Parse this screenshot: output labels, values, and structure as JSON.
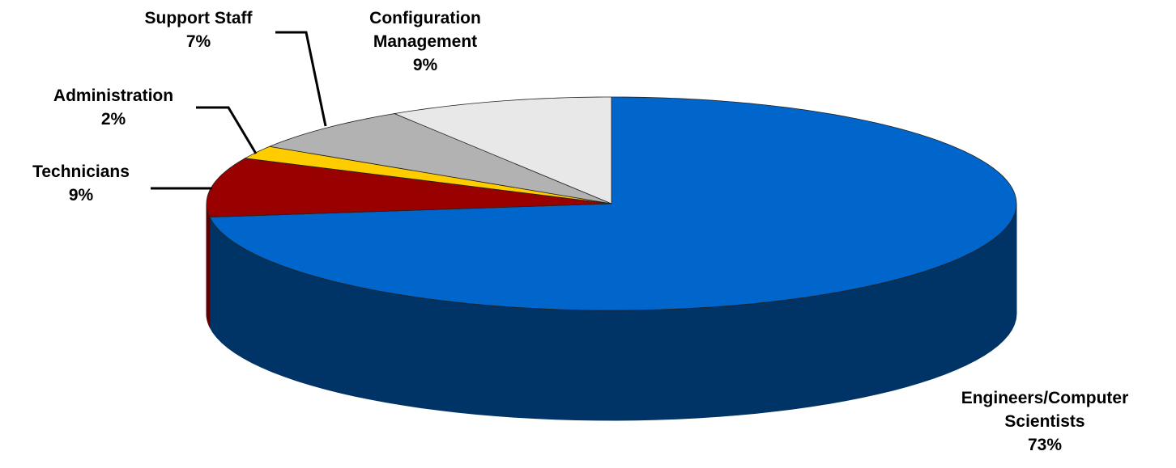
{
  "chart_data": {
    "type": "pie3d",
    "categories": [
      "Engineers/Computer Scientists",
      "Technicians",
      "Administration",
      "Support Staff",
      "Configuration Management"
    ],
    "values": [
      73,
      9,
      2,
      7,
      9
    ],
    "value_labels": [
      "73%",
      "9%",
      "2%",
      "7%",
      "9%"
    ],
    "colors": [
      "#0066cc",
      "#990000",
      "#ffcc00",
      "#b2b2b2",
      "#e8e8e8"
    ],
    "side_colors": [
      "#003366",
      "#5c0000",
      "#b38f00",
      "#7a7a7a",
      "#b4b4b4"
    ]
  }
}
